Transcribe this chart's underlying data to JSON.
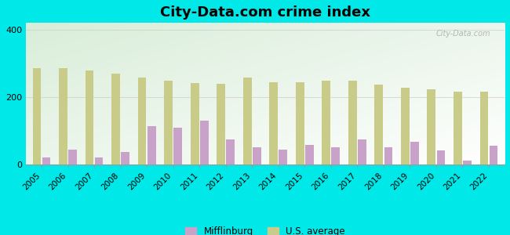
{
  "years": [
    2005,
    2006,
    2007,
    2008,
    2009,
    2010,
    2011,
    2012,
    2013,
    2014,
    2015,
    2016,
    2017,
    2018,
    2019,
    2020,
    2021,
    2022
  ],
  "mifflinburg": [
    20,
    45,
    20,
    38,
    115,
    110,
    130,
    75,
    50,
    45,
    58,
    52,
    75,
    52,
    68,
    42,
    12,
    55
  ],
  "us_average": [
    285,
    285,
    278,
    270,
    258,
    248,
    242,
    240,
    257,
    243,
    243,
    248,
    248,
    238,
    228,
    222,
    215,
    215
  ],
  "title": "City-Data.com crime index",
  "ylim": [
    0,
    420
  ],
  "yticks": [
    0,
    200,
    400
  ],
  "legend_mifflinburg": "Mifflinburg",
  "legend_us": "U.S. average",
  "mifflinburg_color": "#c8a2c8",
  "us_avg_color": "#c8cc88",
  "fig_bg": "#00e8e8",
  "title_fontsize": 13,
  "bar_width": 0.32,
  "bar_gap": 0.04
}
